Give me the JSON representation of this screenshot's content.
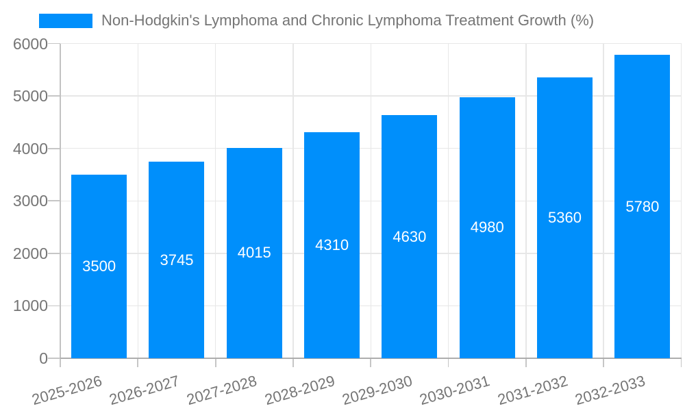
{
  "chart_data": {
    "type": "bar",
    "title": "Non-Hodgkin's Lymphoma and Chronic Lymphoma Treatment Growth (%)",
    "xlabel": "",
    "ylabel": "",
    "categories": [
      "2025-2026",
      "2026-2027",
      "2027-2028",
      "2028-2029",
      "2029-2030",
      "2030-2031",
      "2031-2032",
      "2032-2033"
    ],
    "values": [
      3500,
      3745,
      4015,
      4310,
      4630,
      4980,
      5360,
      5780
    ],
    "data_labels": [
      "3500",
      "3745",
      "4015",
      "4310",
      "4630",
      "4980",
      "5360",
      "5780"
    ],
    "ylim": [
      0,
      6000
    ],
    "ytick_interval": 1000,
    "yticks": [
      "0",
      "1000",
      "2000",
      "3000",
      "4000",
      "5000",
      "6000"
    ],
    "grid": "on",
    "legend_position": "top-left",
    "colors": {
      "bar": "#008FFB",
      "data_label": "#FFFFFF",
      "axis_label": "#757575",
      "legend_text": "#757575",
      "gridline": "#E7E7E7",
      "axis_line": "#ADADAD",
      "y_axis_line": "#C2C2C2",
      "tick": "#C6C6C6",
      "background": "#FFFFFF"
    }
  }
}
